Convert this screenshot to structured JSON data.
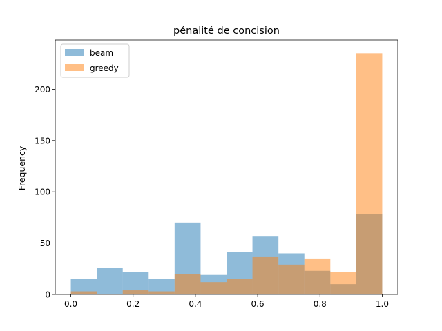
{
  "chart_data": {
    "type": "bar",
    "subtype": "overlaid-histogram",
    "title": "pénalité de concision",
    "xlabel": "",
    "ylabel": "Frequency",
    "xlim": [
      -0.05,
      1.05
    ],
    "ylim": [
      0,
      248
    ],
    "xticks": [
      0.0,
      0.2,
      0.4,
      0.6,
      0.8,
      1.0
    ],
    "xtick_labels": [
      "0.0",
      "0.2",
      "0.4",
      "0.6",
      "0.8",
      "1.0"
    ],
    "yticks": [
      0,
      50,
      100,
      150,
      200
    ],
    "ytick_labels": [
      "0",
      "50",
      "100",
      "150",
      "200"
    ],
    "bin_edges": [
      0.0,
      0.0833,
      0.1667,
      0.25,
      0.3333,
      0.4167,
      0.5,
      0.5833,
      0.6667,
      0.75,
      0.8333,
      0.9167,
      1.0
    ],
    "grid": false,
    "legend_position": "top-left",
    "series": [
      {
        "name": "beam",
        "color": "#1f77b4",
        "values": [
          15,
          26,
          22,
          15,
          70,
          19,
          41,
          57,
          40,
          23,
          10,
          78
        ]
      },
      {
        "name": "greedy",
        "color": "#ff7f0e",
        "values": [
          3,
          0,
          4,
          3,
          20,
          12,
          15,
          37,
          29,
          35,
          22,
          235
        ]
      }
    ]
  }
}
